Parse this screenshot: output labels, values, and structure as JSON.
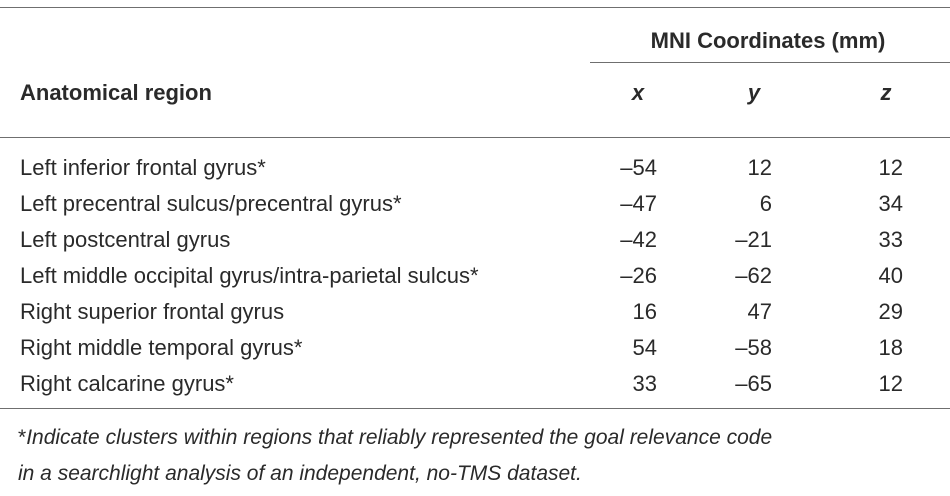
{
  "table": {
    "group_header": "MNI Coordinates (mm)",
    "region_header": "Anatomical region",
    "coord_headers": [
      "x",
      "y",
      "z"
    ],
    "rows": [
      {
        "region": "Left inferior frontal gyrus*",
        "x": "–54",
        "y": "12",
        "z": "12"
      },
      {
        "region": "Left precentral sulcus/precentral gyrus*",
        "x": "–47",
        "y": "6",
        "z": "34"
      },
      {
        "region": "Left postcentral gyrus",
        "x": "–42",
        "y": "–21",
        "z": "33"
      },
      {
        "region": "Left middle occipital gyrus/intra-parietal sulcus*",
        "x": "–26",
        "y": "–62",
        "z": "40"
      },
      {
        "region": "Right superior frontal gyrus",
        "x": "16",
        "y": "47",
        "z": "29"
      },
      {
        "region": "Right middle temporal gyrus*",
        "x": "54",
        "y": "–58",
        "z": "18"
      },
      {
        "region": "Right calcarine gyrus*",
        "x": "33",
        "y": "–65",
        "z": "12"
      }
    ]
  },
  "footnote": {
    "mark": "*",
    "line1": "Indicate clusters within regions that reliably represented the goal relevance code",
    "line2": "in a searchlight analysis of an independent, no-TMS dataset."
  }
}
